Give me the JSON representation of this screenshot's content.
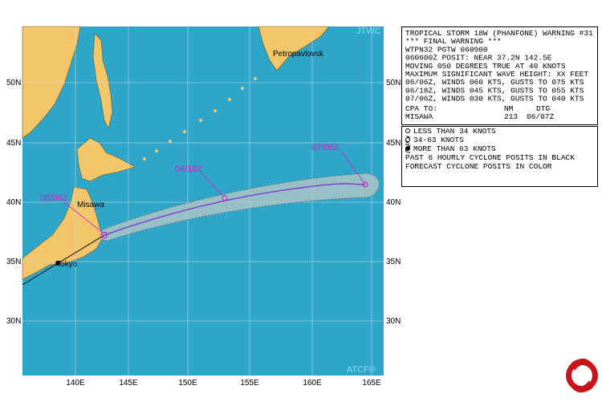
{
  "map": {
    "jtwc": "JTWC",
    "atcf": "ATCF®",
    "lat_labels": [
      "50N",
      "45N",
      "40N",
      "35N",
      "30N"
    ],
    "lon_labels": [
      "140E",
      "145E",
      "150E",
      "155E",
      "160E",
      "165E"
    ],
    "places": [
      "Petropavlovsk",
      "Misawa",
      "Tokyo"
    ],
    "forecast_labels": [
      "06/06Z",
      "06/18Z",
      "07/06Z"
    ]
  },
  "warning": {
    "lines": [
      "TROPICAL STORM 18W (PHANFONE) WARNING #31",
      "*** FINAL WARNING ***",
      "WTPN32 PGTW 060900",
      "060600Z POSIT: NEAR 37.2N 142.5E",
      "MOVING 050 DEGREES TRUE AT 40 KNOTS",
      "MAXIMUM SIGNIFICANT WAVE HEIGHT: XX FEET",
      "06/06Z, WINDS 060 KTS, GUSTS TO 075 KTS",
      "06/18Z, WINDS 045 KTS, GUSTS TO 055 KTS",
      "07/06Z, WINDS 030 KTS, GUSTS TO 040 KTS"
    ],
    "cpa": {
      "header": [
        "CPA TO:",
        "NM",
        "DTG"
      ],
      "row": [
        "MISAWA",
        "213",
        "06/07Z"
      ]
    }
  },
  "legend": {
    "symbols": [
      "LESS THAN 34 KNOTS",
      "34-63 KNOTS",
      "MORE THAN 63 KNOTS"
    ],
    "notes": [
      "PAST 6 HOURLY CYCLONE POSITS IN BLACK",
      "FORECAST CYCLONE POSITS IN COLOR"
    ]
  }
}
